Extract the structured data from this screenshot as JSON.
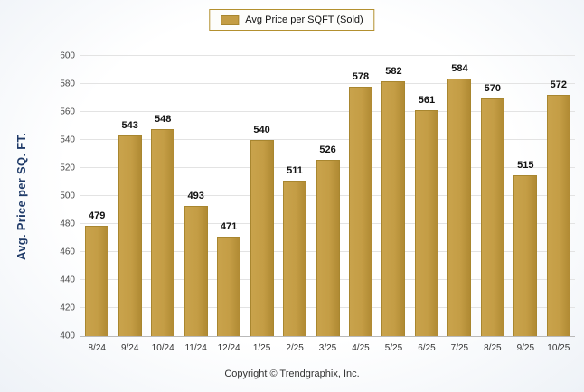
{
  "chart_data": {
    "type": "bar",
    "legend": "Avg Price per SQFT (Sold)",
    "categories": [
      "8/24",
      "9/24",
      "10/24",
      "11/24",
      "12/24",
      "1/25",
      "2/25",
      "3/25",
      "4/25",
      "5/25",
      "6/25",
      "7/25",
      "8/25",
      "9/25",
      "10/25"
    ],
    "values": [
      479,
      543,
      548,
      493,
      471,
      540,
      511,
      526,
      578,
      582,
      561,
      584,
      570,
      515,
      572
    ],
    "title": "",
    "xlabel": "",
    "ylabel": "Avg. Price per SQ. FT.",
    "ylim": [
      400,
      600
    ],
    "ytick_step": 20,
    "grid": true,
    "legend_position": "top",
    "bar_color": "#c49d45"
  },
  "footer": {
    "copyright": "Copyright © Trendgraphix, Inc."
  },
  "colors": {
    "bar": "#c49d45",
    "bar_border": "#a8862f",
    "y_axis_title": "#1f3a68",
    "gridline": "#e3e3e3"
  }
}
